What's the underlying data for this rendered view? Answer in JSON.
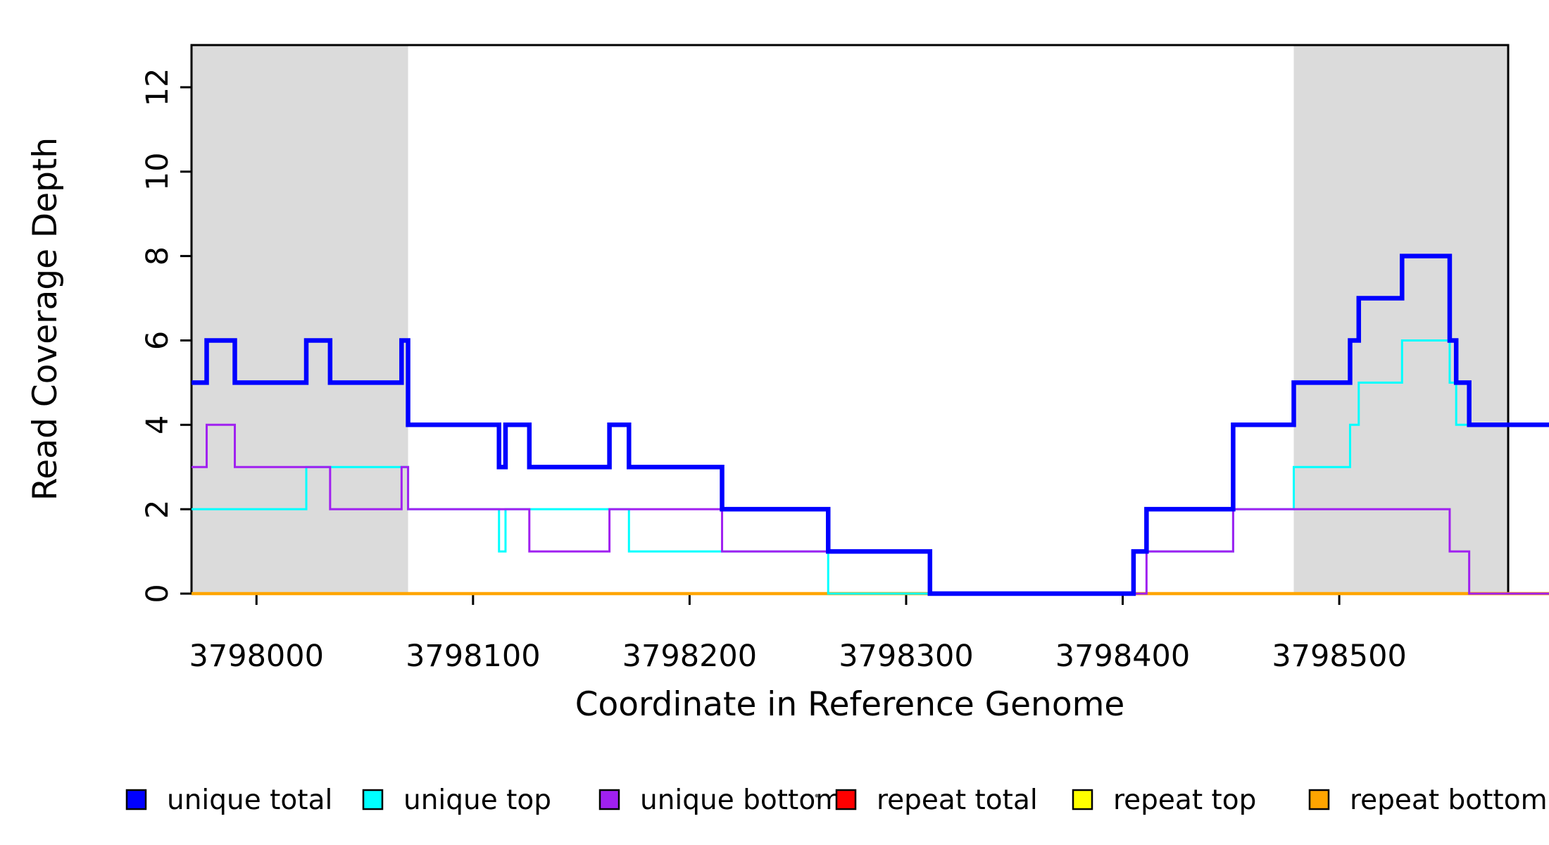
{
  "axes": {
    "x": {
      "title": "Coordinate in Reference Genome",
      "ticks": [
        3798000,
        3798100,
        3798200,
        3798300,
        3798400,
        3798500
      ],
      "range": [
        3797970,
        3798578
      ],
      "data_end": 3798597
    },
    "y": {
      "title": "Read Coverage Depth",
      "ticks": [
        0,
        2,
        4,
        6,
        8,
        10,
        12
      ],
      "range": [
        0,
        13
      ]
    }
  },
  "shaded_regions": [
    {
      "start": 3797970,
      "end": 3798070
    },
    {
      "start": 3798479,
      "end": 3798578
    }
  ],
  "colors": {
    "shaded_region": "#DBDBDB",
    "axis": "#000000",
    "background": "#FFFFFF"
  },
  "chart_data": {
    "type": "step-line",
    "x_label": "Coordinate in Reference Genome",
    "y_label": "Read Coverage Depth",
    "xlim": [
      3797970,
      3798597
    ],
    "ylim": [
      0,
      13
    ],
    "grid": false,
    "legend_position": "bottom",
    "draw_order": [
      "repeat_total",
      "repeat_top",
      "repeat_bottom",
      "unique_top",
      "unique_bottom",
      "unique_total"
    ],
    "series": [
      {
        "key": "unique_total",
        "label": "unique total",
        "color": "#0000FF",
        "line_width": 6.5,
        "steps": [
          [
            3797970,
            5
          ],
          [
            3797977,
            6
          ],
          [
            3797990,
            5
          ],
          [
            3798023,
            6
          ],
          [
            3798034,
            5
          ],
          [
            3798067,
            6
          ],
          [
            3798070,
            4
          ],
          [
            3798112,
            3
          ],
          [
            3798115,
            4
          ],
          [
            3798126,
            3
          ],
          [
            3798163,
            4
          ],
          [
            3798172,
            3
          ],
          [
            3798215,
            2
          ],
          [
            3798264,
            1
          ],
          [
            3798311,
            0
          ],
          [
            3798405,
            1
          ],
          [
            3798411,
            2
          ],
          [
            3798451,
            4
          ],
          [
            3798479,
            5
          ],
          [
            3798505,
            6
          ],
          [
            3798509,
            7
          ],
          [
            3798529,
            8
          ],
          [
            3798551,
            6
          ],
          [
            3798554,
            5
          ],
          [
            3798560,
            4
          ],
          [
            3798597,
            4
          ]
        ]
      },
      {
        "key": "unique_top",
        "label": "unique top",
        "color": "#00FFFF",
        "line_width": 3,
        "steps": [
          [
            3797970,
            2
          ],
          [
            3798023,
            3
          ],
          [
            3798070,
            2
          ],
          [
            3798112,
            1
          ],
          [
            3798115,
            2
          ],
          [
            3798172,
            1
          ],
          [
            3798264,
            0
          ],
          [
            3798405,
            1
          ],
          [
            3798451,
            2
          ],
          [
            3798479,
            3
          ],
          [
            3798505,
            4
          ],
          [
            3798509,
            5
          ],
          [
            3798529,
            6
          ],
          [
            3798551,
            5
          ],
          [
            3798554,
            4
          ],
          [
            3798597,
            4
          ]
        ]
      },
      {
        "key": "unique_bottom",
        "label": "unique bottom",
        "color": "#A020F0",
        "line_width": 3,
        "steps": [
          [
            3797970,
            3
          ],
          [
            3797977,
            4
          ],
          [
            3797990,
            3
          ],
          [
            3798034,
            2
          ],
          [
            3798067,
            3
          ],
          [
            3798070,
            2
          ],
          [
            3798126,
            1
          ],
          [
            3798163,
            2
          ],
          [
            3798215,
            1
          ],
          [
            3798311,
            0
          ],
          [
            3798411,
            1
          ],
          [
            3798451,
            2
          ],
          [
            3798551,
            1
          ],
          [
            3798560,
            0
          ],
          [
            3798597,
            0
          ]
        ]
      },
      {
        "key": "repeat_total",
        "label": "repeat total",
        "color": "#FF0000",
        "line_width": 3,
        "steps": [
          [
            3797970,
            0
          ],
          [
            3798597,
            0
          ]
        ]
      },
      {
        "key": "repeat_top",
        "label": "repeat top",
        "color": "#FFFF00",
        "line_width": 3,
        "steps": [
          [
            3797970,
            0
          ],
          [
            3798597,
            0
          ]
        ]
      },
      {
        "key": "repeat_bottom",
        "label": "repeat bottom",
        "color": "#FFA500",
        "line_width": 4.5,
        "steps": [
          [
            3797970,
            0
          ],
          [
            3798597,
            0
          ]
        ]
      }
    ]
  }
}
